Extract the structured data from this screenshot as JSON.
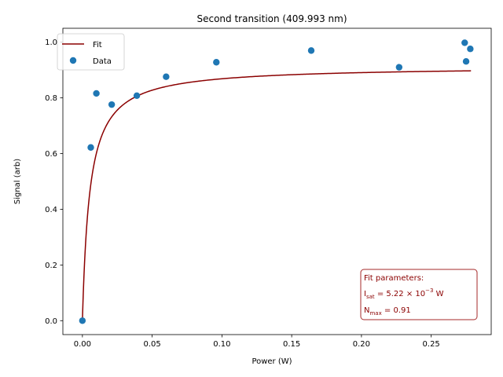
{
  "chart_data": {
    "type": "scatter",
    "title": "Second transition (409.993 nm)",
    "xlabel": "Power (W)",
    "ylabel": "Signal (arb)",
    "xlim": [
      -0.014,
      0.293
    ],
    "ylim": [
      -0.05,
      1.05
    ],
    "xticks": [
      0.0,
      0.05,
      0.1,
      0.15,
      0.2,
      0.25
    ],
    "xtick_labels": [
      "0.00",
      "0.05",
      "0.10",
      "0.15",
      "0.20",
      "0.25"
    ],
    "yticks": [
      0.0,
      0.2,
      0.4,
      0.6,
      0.8,
      1.0
    ],
    "ytick_labels": [
      "0.0",
      "0.2",
      "0.4",
      "0.6",
      "0.8",
      "1.0"
    ],
    "grid": false,
    "legend_position": "upper-left",
    "series": [
      {
        "name": "Data",
        "kind": "scatter",
        "color": "#1f77b4",
        "x": [
          0.0,
          0.006,
          0.01,
          0.021,
          0.039,
          0.06,
          0.096,
          0.164,
          0.227,
          0.274,
          0.275,
          0.278
        ],
        "y": [
          0.0,
          0.622,
          0.816,
          0.776,
          0.808,
          0.876,
          0.928,
          0.97,
          0.91,
          0.998,
          0.931,
          0.976
        ]
      },
      {
        "name": "Fit",
        "kind": "line",
        "color": "#8b0000",
        "model": "saturation",
        "params": {
          "i_sat": 0.00522,
          "n_max": 0.914
        },
        "x_range": [
          0.0,
          0.2785
        ]
      }
    ],
    "annotation": {
      "heading": "Fit parameters:",
      "isat_symbol": "I",
      "isat_sub": "sat",
      "isat_value": " = 5.22 × 10",
      "isat_exp": "−3",
      "isat_unit": " W",
      "nmax_symbol": "N",
      "nmax_sub": "max",
      "nmax_value": " = 0.91",
      "border_color": "#a52a2a",
      "position": "lower-right"
    }
  }
}
